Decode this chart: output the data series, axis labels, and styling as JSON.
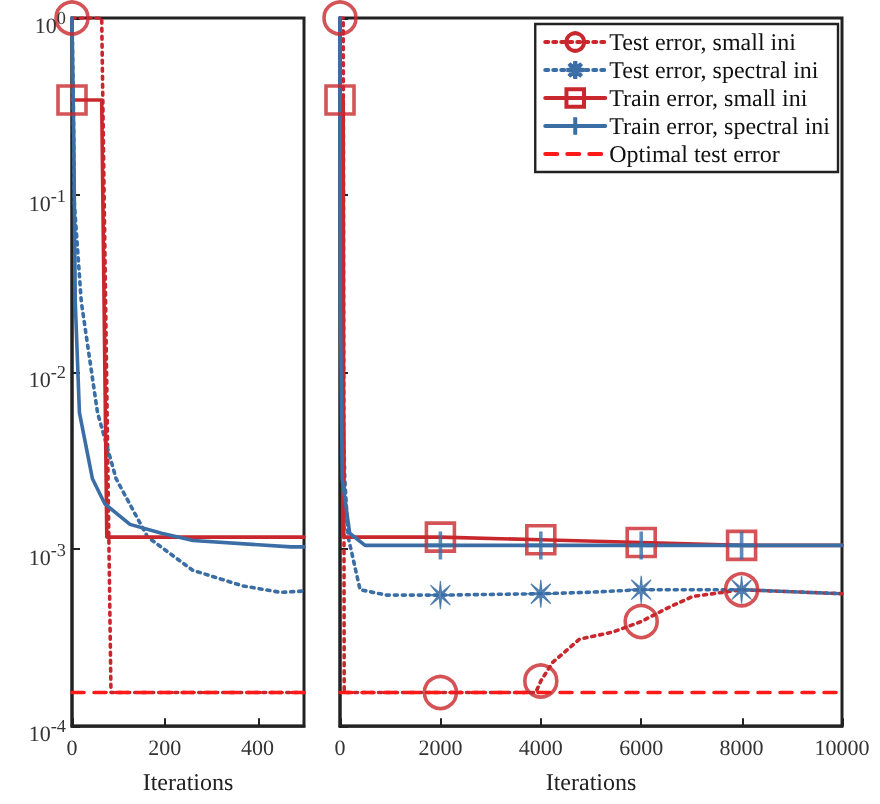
{
  "chart_data": [
    {
      "type": "line",
      "xlabel": "Iterations",
      "log": "y",
      "xlim": [
        0,
        500
      ],
      "xticks": [
        0,
        200,
        400
      ],
      "ylim": [
        0.0001,
        1
      ],
      "yticks": [
        {
          "value": 1,
          "label": "10$^{0}$"
        },
        {
          "value": 0.1,
          "label": "10$^{-1}$"
        },
        {
          "value": 0.01,
          "label": "10$^{-2}$"
        },
        {
          "value": 0.001,
          "label": "10$^{-3}$"
        },
        {
          "value": 0.0001,
          "label": "10$^{-4}$"
        }
      ],
      "grid": false,
      "series": [
        {
          "type": "line",
          "color": "#c8282d",
          "line_style": "dotted",
          "x": [
            0,
            64,
            84,
            500
          ],
          "values": [
            1,
            1,
            0.000155,
            0.000155
          ]
        },
        {
          "type": "scatter",
          "color": "#c8282d",
          "marker": "circle",
          "x": [
            0
          ],
          "values": [
            1
          ]
        },
        {
          "type": "line",
          "color": "#3b6ea5",
          "line_style": "dotted",
          "x": [
            0,
            3,
            5,
            20,
            55,
            95,
            163,
            260,
            368,
            450,
            500
          ],
          "values": [
            1,
            0.3,
            0.09,
            0.025,
            0.0059,
            0.0025,
            0.00117,
            0.00076,
            0.00062,
            0.00057,
            0.00058
          ]
        },
        {
          "type": "line",
          "color": "#c8282d",
          "line_style": "solid",
          "x": [
            0,
            64,
            75,
            500
          ],
          "values": [
            0.344,
            0.344,
            0.00117,
            0.00117
          ]
        },
        {
          "type": "scatter",
          "color": "#c8282d",
          "marker": "square",
          "x": [
            0
          ],
          "values": [
            0.344
          ]
        },
        {
          "type": "line",
          "color": "#3b6ea5",
          "line_style": "solid",
          "x": [
            0,
            4,
            7,
            16,
            44,
            71,
            125,
            193,
            261,
            472,
            500
          ],
          "values": [
            1,
            0.2,
            0.025,
            0.0059,
            0.0025,
            0.0018,
            0.00138,
            0.00123,
            0.00112,
            0.00103,
            0.00103
          ]
        },
        {
          "type": "line",
          "color": "#ff1a1a",
          "line_style": "dashed",
          "x": [
            0,
            500
          ],
          "values": [
            0.000155,
            0.000155
          ]
        }
      ]
    },
    {
      "type": "line",
      "xlabel": "Iterations",
      "log": "y",
      "xlim": [
        0,
        10000
      ],
      "xticks": [
        0,
        2000,
        4000,
        6000,
        8000,
        10000
      ],
      "ylim": [
        0.0001,
        1
      ],
      "yticks": [
        1,
        0.1,
        0.01,
        0.001,
        0.0001
      ],
      "tick_labels": "x",
      "grid": false,
      "legend": "top right",
      "series": [
        {
          "type": "line",
          "name": "Test error, small ini",
          "color": "#c8282d",
          "line_style": "dotted",
          "x": [
            0,
            64,
            84,
            3900,
            4000,
            4240,
            4770,
            5430,
            6000,
            6490,
            7020,
            8000,
            10000
          ],
          "values": [
            1,
            1,
            0.000155,
            0.000155,
            0.00018,
            0.00023,
            0.00031,
            0.00034,
            0.00039,
            0.00046,
            0.00054,
            0.00059,
            0.00056
          ]
        },
        {
          "type": "scatter",
          "color": "#c8282d",
          "marker": "circle",
          "x": [
            0,
            2000,
            4000,
            6000,
            8000
          ],
          "values": [
            1,
            0.000155,
            0.00018,
            0.00039,
            0.00059
          ]
        },
        {
          "type": "line",
          "name": "Test error, spectral ini",
          "color": "#3b6ea5",
          "line_style": "dotted",
          "x": [
            0,
            20,
            95,
            163,
            400,
            930,
            2000,
            4000,
            4900,
            6000,
            8000,
            10000
          ],
          "values": [
            1,
            0.025,
            0.0025,
            0.00117,
            0.00059,
            0.00055,
            0.00055,
            0.00056,
            0.00057,
            0.00059,
            0.00059,
            0.00056
          ]
        },
        {
          "type": "scatter",
          "color": "#3b6ea5",
          "marker": "star",
          "x": [
            2000,
            4000,
            6000,
            8000
          ],
          "values": [
            0.00055,
            0.00056,
            0.00059,
            0.00059
          ]
        },
        {
          "type": "line",
          "name": "Train error, small ini",
          "color": "#c8282d",
          "line_style": "solid",
          "x": [
            0,
            64,
            75,
            2000,
            4000,
            6000,
            8000,
            10000
          ],
          "values": [
            0.344,
            0.344,
            0.00117,
            0.00117,
            0.00113,
            0.00109,
            0.00105,
            0.00105
          ]
        },
        {
          "type": "scatter",
          "color": "#c8282d",
          "marker": "square",
          "x": [
            0,
            2000,
            4000,
            6000,
            8000
          ],
          "values": [
            0.344,
            0.00117,
            0.00113,
            0.00109,
            0.00105
          ]
        },
        {
          "type": "line",
          "name": "Train error, spectral ini",
          "color": "#3b6ea5",
          "line_style": "solid",
          "x": [
            0,
            7,
            44,
            193,
            500,
            2000,
            10000
          ],
          "values": [
            1,
            0.025,
            0.0025,
            0.00123,
            0.00105,
            0.00105,
            0.00105
          ]
        },
        {
          "type": "scatter",
          "color": "#3b6ea5",
          "marker": "cross",
          "x": [
            2000,
            4000,
            6000,
            8000
          ],
          "values": [
            0.00105,
            0.00105,
            0.00105,
            0.00105
          ]
        },
        {
          "type": "line",
          "name": "Optimal test error",
          "color": "#ff1a1a",
          "line_style": "dashed",
          "x": [
            0,
            10000
          ],
          "values": [
            0.000155,
            0.000155
          ]
        }
      ]
    }
  ]
}
